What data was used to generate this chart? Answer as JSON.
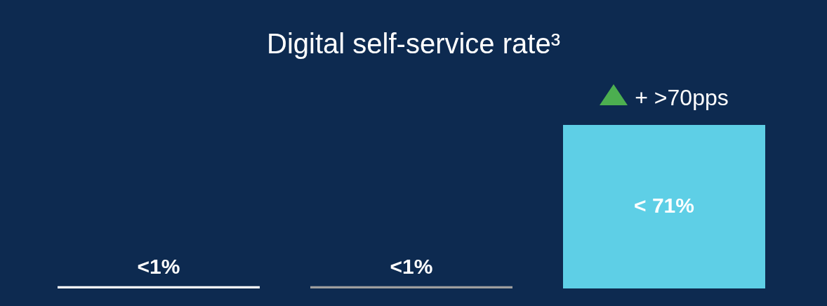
{
  "chart_data": {
    "type": "bar",
    "title": "Digital self-service rate³",
    "categories": [
      null,
      null,
      null
    ],
    "values": [
      1,
      1,
      71
    ],
    "colors": [
      "#ffffff",
      "#9e9e9e",
      "#5ecfe6"
    ],
    "value_labels": [
      "<1%",
      "<1%",
      "< 71%"
    ],
    "annotations": [
      "+ >70pps"
    ]
  }
}
